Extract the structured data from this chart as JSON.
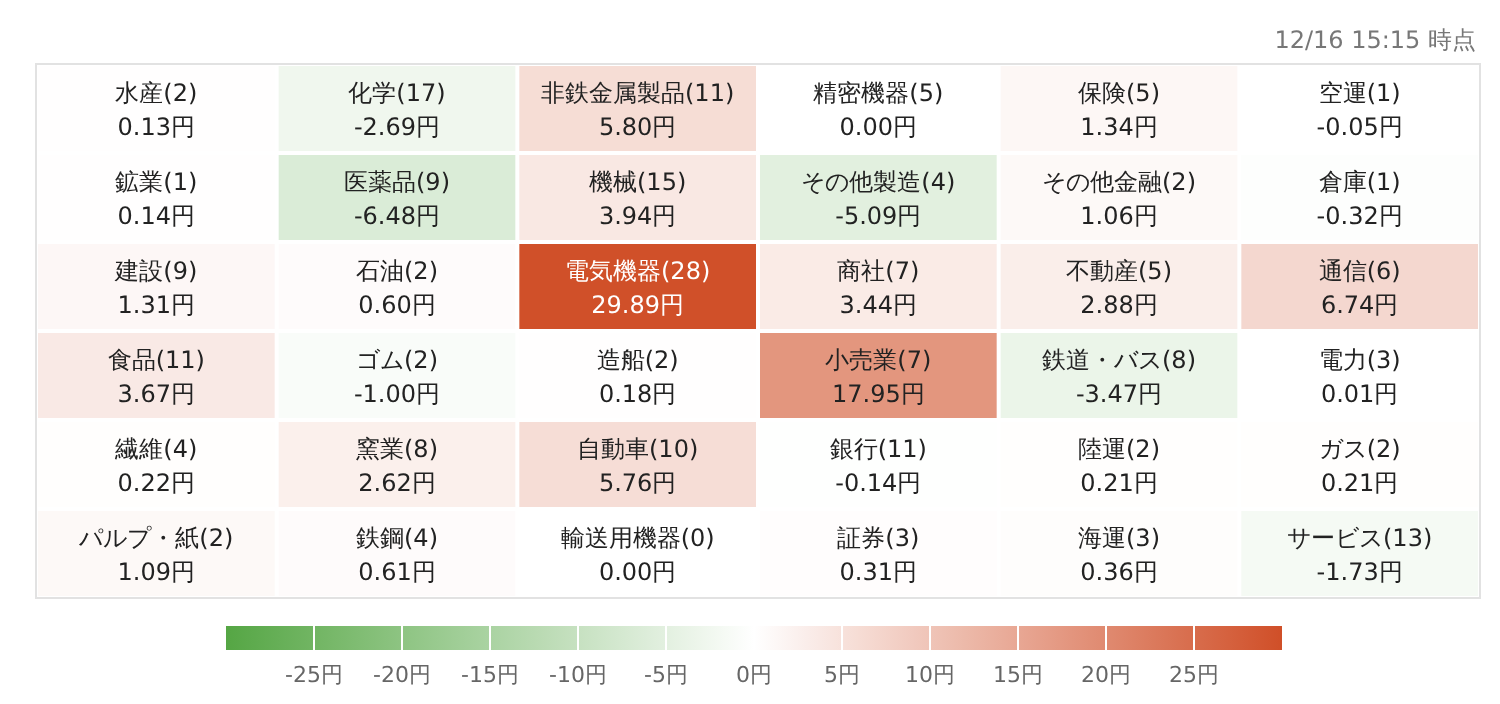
{
  "chart_data": {
    "type": "heatmap",
    "subtitle": "12/16 15:15 時点",
    "categories": [
      null,
      null,
      null,
      null,
      null,
      null
    ],
    "y_categories": [
      null,
      null,
      null,
      null,
      null,
      null
    ],
    "cells": [
      [
        0.13,
        -2.69,
        5.8,
        0.0,
        1.34,
        -0.05
      ],
      [
        0.14,
        -6.48,
        3.94,
        -5.09,
        1.06,
        -0.32
      ],
      [
        1.31,
        0.6,
        29.89,
        3.44,
        2.88,
        6.74
      ],
      [
        3.67,
        -1.0,
        0.18,
        17.95,
        -3.47,
        0.01
      ],
      [
        0.22,
        2.62,
        5.76,
        -0.14,
        0.21,
        0.21
      ],
      [
        1.09,
        0.61,
        0.0,
        0.31,
        0.36,
        -1.73
      ]
    ],
    "cell_labels": [
      [
        "水産(2)\n0.13円",
        "化学(17)\n-2.69円",
        "非鉄金属製品(11)\n5.80円",
        "精密機器(5)\n0.00円",
        "保険(5)\n1.34円",
        "空運(1)\n-0.05円"
      ],
      [
        "鉱業(1)\n0.14円",
        "医薬品(9)\n-6.48円",
        "機械(15)\n3.94円",
        "その他製造(4)\n-5.09円",
        "その他金融(2)\n1.06円",
        "倉庫(1)\n-0.32円"
      ],
      [
        "建設(9)\n1.31円",
        "石油(2)\n0.60円",
        "電気機器(28)\n29.89円",
        "商社(7)\n3.44円",
        "不動産(5)\n2.88円",
        "通信(6)\n6.74円"
      ],
      [
        "食品(11)\n3.67円",
        "ゴム(2)\n-1.00円",
        "造船(2)\n0.18円",
        "小売業(7)\n17.95円",
        "鉄道・バス(8)\n-3.47円",
        "電力(3)\n0.01円"
      ],
      [
        "繊維(4)\n0.22円",
        "窯業(8)\n2.62円",
        "自動車(10)\n5.76円",
        "銀行(11)\n-0.14円",
        "陸運(2)\n0.21円",
        "ガス(2)\n0.21円"
      ],
      [
        "パルプ・紙(2)\n1.09円",
        "鉄鋼(4)\n0.61円",
        "輸送用機器(0)\n0.00円",
        "証券(3)\n0.31円",
        "海運(3)\n0.36円",
        "サービス(13)\n-1.73円"
      ]
    ],
    "clim": [
      -30,
      30
    ],
    "cticks": [
      {
        "value": -25,
        "label": "-25円"
      },
      {
        "value": -20,
        "label": "-20円"
      },
      {
        "value": -15,
        "label": "-15円"
      },
      {
        "value": -10,
        "label": "-10円"
      },
      {
        "value": -5,
        "label": "-5円"
      },
      {
        "value": 0,
        "label": "0円"
      },
      {
        "value": 5,
        "label": "5円"
      },
      {
        "value": 10,
        "label": "10円"
      },
      {
        "value": 15,
        "label": "15円"
      },
      {
        "value": 20,
        "label": "20円"
      },
      {
        "value": 25,
        "label": "25円"
      }
    ],
    "colors": [
      "#55a644",
      "#ffffff",
      "#d04f28"
    ]
  }
}
